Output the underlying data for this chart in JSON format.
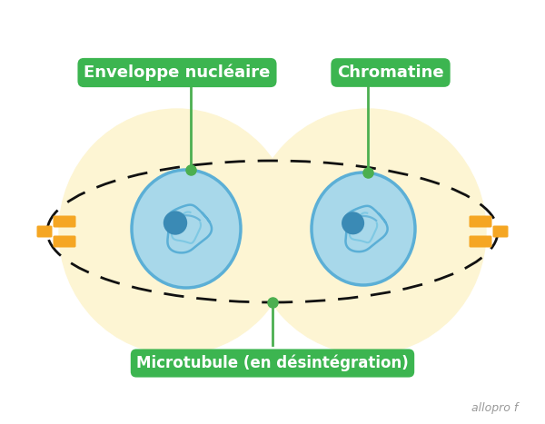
{
  "bg_color": "#ffffff",
  "cell_bg": "#fdf5d3",
  "nucleus_fill": "#a8d8ea",
  "nucleus_border": "#5bafd6",
  "chromatin_dark": "#5bafd6",
  "chromatin_mid": "#7ec8e3",
  "nucleolus_color": "#3a8ab5",
  "green_line": "#4caf50",
  "green_dot": "#4caf50",
  "dashed_color": "#111111",
  "orange_color": "#f5a623",
  "label_bg": "#3cb550",
  "label_text": "#ffffff",
  "watermark_color": "#999999",
  "label1": "Enveloppe nucléaire",
  "label2": "Chromatine",
  "label3": "Microtubule (en désintégration)",
  "watermark": "allopro f",
  "figsize": [
    6.0,
    4.67
  ],
  "dpi": 100
}
